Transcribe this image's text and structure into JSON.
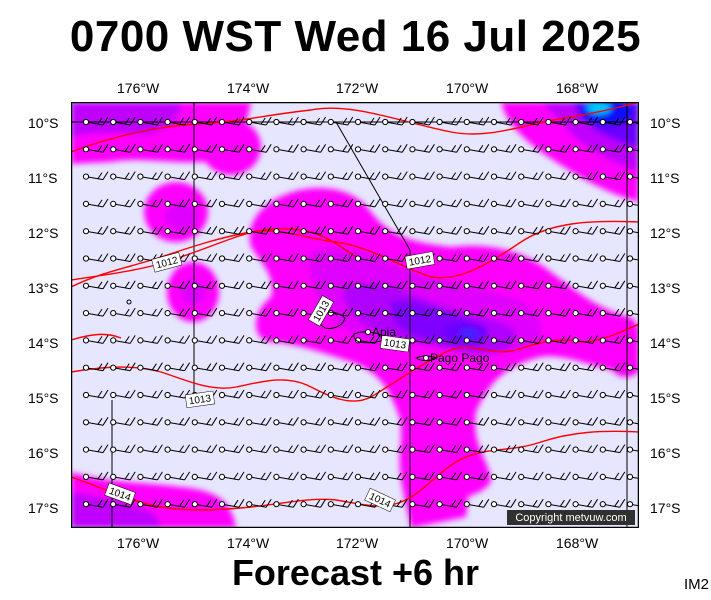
{
  "header": {
    "title": "0700 WST Wed 16 Jul 2025"
  },
  "footer": {
    "forecast": "Forecast +6 hr",
    "code": "IM2"
  },
  "map": {
    "lon_labels": [
      "176°W",
      "174°W",
      "172°W",
      "170°W",
      "168°W"
    ],
    "lat_labels": [
      "10°S",
      "11°S",
      "12°S",
      "13°S",
      "14°S",
      "15°S",
      "16°S",
      "17°S"
    ],
    "isobar_labels": [
      "1012",
      "1012",
      "1013",
      "1013",
      "1013",
      "1014",
      "1014"
    ],
    "places": [
      {
        "name": "Apia"
      },
      {
        "name": "Pago Pago"
      }
    ],
    "copyright": "Copyright metvuw.com",
    "colors": {
      "background": "#e6e6ff",
      "precip_light": "#ff00ff",
      "precip_medium": "#c000ff",
      "precip_heavy": "#6a00ff",
      "precip_very_heavy": "#1010ff",
      "precip_extreme": "#00c8ff",
      "isobar": "#ff0000",
      "wind_barb": "#000000"
    }
  }
}
